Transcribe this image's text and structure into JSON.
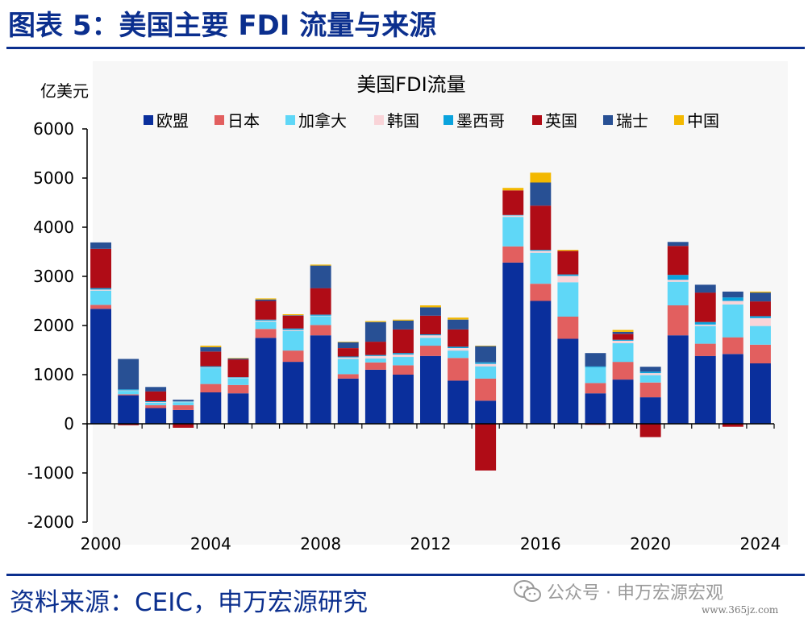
{
  "header": {
    "title": "图表 5：美国主要 FDI 流量与来源"
  },
  "footer": {
    "source": "资料来源：CEIC，申万宏源研究",
    "watermark": "公众号 · 申万宏源宏观",
    "watermark_url": "www.365jz.com"
  },
  "chart_data": {
    "type": "bar",
    "stacked": true,
    "title": "美国FDI流量",
    "ylabel": "亿美元",
    "ylim": [
      -2000,
      6000
    ],
    "yticks": [
      -2000,
      -1000,
      0,
      1000,
      2000,
      3000,
      4000,
      5000,
      6000
    ],
    "xtick_labels": [
      "2000",
      "2004",
      "2008",
      "2012",
      "2016",
      "2020",
      "2024"
    ],
    "categories": [
      "2000",
      "2001",
      "2002",
      "2003",
      "2004",
      "2005",
      "2006",
      "2007",
      "2008",
      "2009",
      "2010",
      "2011",
      "2012",
      "2013",
      "2014",
      "2015",
      "2016",
      "2017",
      "2018",
      "2019",
      "2020",
      "2021",
      "2022",
      "2023",
      "2024"
    ],
    "legend_position": "top",
    "grid": false,
    "series": [
      {
        "name": "欧盟",
        "color": "#0a2f9c",
        "values": [
          2340,
          580,
          320,
          280,
          640,
          620,
          1750,
          1260,
          1800,
          920,
          1100,
          1000,
          1380,
          880,
          470,
          3280,
          2500,
          1730,
          620,
          900,
          540,
          1800,
          1380,
          1420,
          1230
        ]
      },
      {
        "name": "日本",
        "color": "#e25f5f",
        "values": [
          80,
          20,
          60,
          100,
          170,
          170,
          180,
          230,
          210,
          90,
          150,
          190,
          210,
          460,
          450,
          330,
          350,
          450,
          210,
          360,
          300,
          610,
          250,
          340,
          380
        ]
      },
      {
        "name": "加拿大",
        "color": "#5fd7f7",
        "values": [
          290,
          70,
          50,
          60,
          330,
          140,
          150,
          400,
          180,
          310,
          80,
          170,
          160,
          150,
          250,
          600,
          630,
          700,
          320,
          380,
          150,
          480,
          360,
          670,
          380
        ]
      },
      {
        "name": "韩国",
        "color": "#f9d4d8",
        "values": [
          20,
          10,
          10,
          10,
          10,
          10,
          20,
          20,
          10,
          30,
          50,
          50,
          50,
          50,
          50,
          30,
          40,
          130,
          0,
          50,
          40,
          40,
          30,
          70,
          160
        ]
      },
      {
        "name": "墨西哥",
        "color": "#0aa3dd",
        "values": [
          30,
          20,
          20,
          10,
          20,
          10,
          20,
          30,
          20,
          20,
          20,
          30,
          20,
          30,
          30,
          10,
          20,
          30,
          20,
          20,
          30,
          100,
          50,
          70,
          40
        ]
      },
      {
        "name": "英国",
        "color": "#b00c16",
        "values": [
          800,
          -30,
          200,
          -80,
          300,
          360,
          380,
          260,
          540,
          170,
          270,
          480,
          380,
          350,
          -950,
          500,
          900,
          480,
          -20,
          120,
          -270,
          590,
          600,
          -60,
          300
        ]
      },
      {
        "name": "瑞士",
        "color": "#285094",
        "values": [
          130,
          620,
          90,
          30,
          90,
          20,
          30,
          10,
          460,
          120,
          400,
          180,
          170,
          200,
          330,
          0,
          470,
          0,
          270,
          40,
          100,
          80,
          160,
          120,
          180
        ]
      },
      {
        "name": "中国",
        "color": "#f3b800",
        "values": [
          0,
          0,
          0,
          0,
          30,
          10,
          20,
          20,
          20,
          10,
          20,
          20,
          40,
          40,
          10,
          50,
          200,
          20,
          0,
          40,
          0,
          0,
          0,
          0,
          20
        ]
      }
    ]
  }
}
